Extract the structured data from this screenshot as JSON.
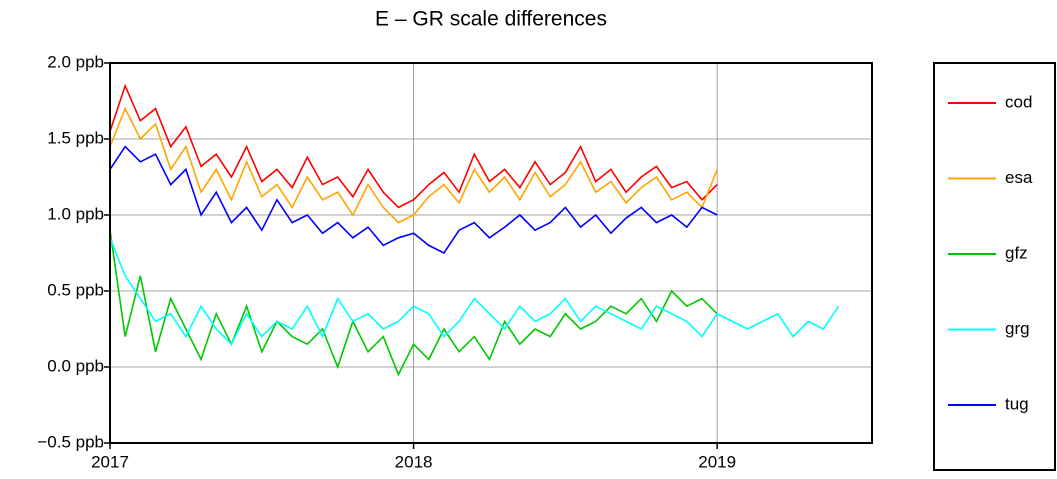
{
  "chart_data": {
    "type": "line",
    "title": "E – GR scale differences",
    "x": [
      2017.0,
      2017.05,
      2017.1,
      2017.15,
      2017.2,
      2017.25,
      2017.3,
      2017.35,
      2017.4,
      2017.45,
      2017.5,
      2017.55,
      2017.6,
      2017.65,
      2017.7,
      2017.75,
      2017.8,
      2017.85,
      2017.9,
      2017.95,
      2018.0,
      2018.05,
      2018.1,
      2018.15,
      2018.2,
      2018.25,
      2018.3,
      2018.35,
      2018.4,
      2018.45,
      2018.5,
      2018.55,
      2018.6,
      2018.65,
      2018.7,
      2018.75,
      2018.8,
      2018.85,
      2018.9,
      2018.95,
      2019.0,
      2019.05,
      2019.1,
      2019.15,
      2019.2,
      2019.25,
      2019.3,
      2019.35,
      2019.4
    ],
    "xlim": [
      2017,
      2019.51
    ],
    "xticks": [
      2017,
      2018,
      2019
    ],
    "ylim": [
      -0.5,
      2.0
    ],
    "yticks": [
      {
        "value": -0.5,
        "label": "−0.5 ppb"
      },
      {
        "value": 0.0,
        "label": "0.0 ppb"
      },
      {
        "value": 0.5,
        "label": "0.5 ppb"
      },
      {
        "value": 1.0,
        "label": "1.0 ppb"
      },
      {
        "value": 1.5,
        "label": "1.5 ppb"
      },
      {
        "value": 2.0,
        "label": "2.0 ppb"
      }
    ],
    "grid": true,
    "series": [
      {
        "name": "cod",
        "color": "#ff0000",
        "values": [
          1.55,
          1.85,
          1.62,
          1.7,
          1.45,
          1.58,
          1.32,
          1.4,
          1.25,
          1.45,
          1.22,
          1.3,
          1.18,
          1.38,
          1.2,
          1.25,
          1.12,
          1.3,
          1.15,
          1.05,
          1.1,
          1.2,
          1.28,
          1.15,
          1.4,
          1.22,
          1.3,
          1.18,
          1.35,
          1.2,
          1.28,
          1.45,
          1.22,
          1.3,
          1.15,
          1.25,
          1.32,
          1.18,
          1.22,
          1.1,
          1.2,
          null,
          null,
          null,
          null,
          null,
          null,
          null,
          null
        ]
      },
      {
        "name": "esa",
        "color": "#ffa500",
        "values": [
          1.45,
          1.7,
          1.5,
          1.6,
          1.3,
          1.45,
          1.15,
          1.3,
          1.1,
          1.35,
          1.12,
          1.2,
          1.05,
          1.25,
          1.1,
          1.15,
          1.0,
          1.2,
          1.05,
          0.95,
          1.0,
          1.12,
          1.2,
          1.08,
          1.3,
          1.15,
          1.25,
          1.1,
          1.28,
          1.12,
          1.2,
          1.35,
          1.15,
          1.22,
          1.08,
          1.18,
          1.25,
          1.1,
          1.15,
          1.05,
          1.3,
          null,
          null,
          null,
          null,
          null,
          null,
          null,
          null
        ]
      },
      {
        "name": "gfz",
        "color": "#00c800",
        "values": [
          0.9,
          0.2,
          0.6,
          0.1,
          0.45,
          0.25,
          0.05,
          0.35,
          0.15,
          0.4,
          0.1,
          0.3,
          0.2,
          0.15,
          0.25,
          0.0,
          0.3,
          0.1,
          0.2,
          -0.05,
          0.15,
          0.05,
          0.25,
          0.1,
          0.2,
          0.05,
          0.3,
          0.15,
          0.25,
          0.2,
          0.35,
          0.25,
          0.3,
          0.4,
          0.35,
          0.45,
          0.3,
          0.5,
          0.4,
          0.45,
          0.35,
          null,
          null,
          null,
          null,
          null,
          null,
          null,
          null
        ]
      },
      {
        "name": "grg",
        "color": "#00ffff",
        "values": [
          0.85,
          0.6,
          0.45,
          0.3,
          0.35,
          0.2,
          0.4,
          0.25,
          0.15,
          0.35,
          0.2,
          0.3,
          0.25,
          0.4,
          0.2,
          0.45,
          0.3,
          0.35,
          0.25,
          0.3,
          0.4,
          0.35,
          0.2,
          0.3,
          0.45,
          0.35,
          0.25,
          0.4,
          0.3,
          0.35,
          0.45,
          0.3,
          0.4,
          0.35,
          0.3,
          0.25,
          0.4,
          0.35,
          0.3,
          0.2,
          0.35,
          0.3,
          0.25,
          0.3,
          0.35,
          0.2,
          0.3,
          0.25,
          0.4
        ]
      },
      {
        "name": "tug",
        "color": "#0000ff",
        "values": [
          1.3,
          1.45,
          1.35,
          1.4,
          1.2,
          1.3,
          1.0,
          1.15,
          0.95,
          1.05,
          0.9,
          1.1,
          0.95,
          1.0,
          0.88,
          0.95,
          0.85,
          0.92,
          0.8,
          0.85,
          0.88,
          0.8,
          0.75,
          0.9,
          0.95,
          0.85,
          0.92,
          1.0,
          0.9,
          0.95,
          1.05,
          0.92,
          1.0,
          0.88,
          0.98,
          1.05,
          0.95,
          1.0,
          0.92,
          1.05,
          1.0,
          null,
          null,
          null,
          null,
          null,
          null,
          null,
          null
        ]
      }
    ]
  }
}
